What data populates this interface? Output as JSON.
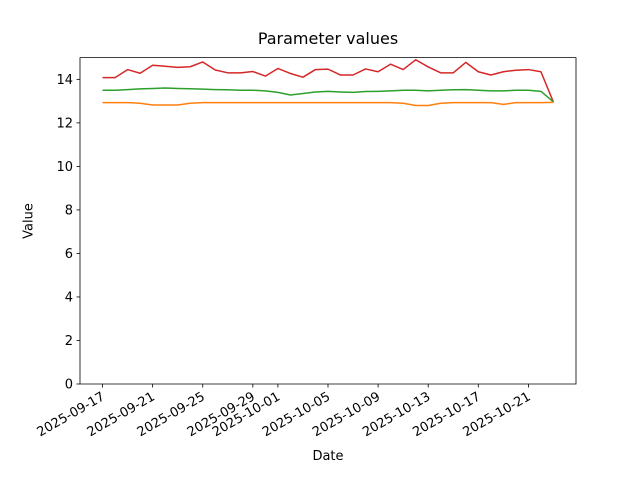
{
  "chart_data": {
    "type": "line",
    "title": "Parameter values",
    "xlabel": "Date",
    "ylabel": "Value",
    "ylim": [
      0,
      15
    ],
    "yticks": [
      0,
      2,
      4,
      6,
      8,
      10,
      12,
      14
    ],
    "grid": false,
    "legend_visible": false,
    "axis_color": "#000000",
    "background_color": "#ffffff",
    "x_dates": [
      "2025-09-17",
      "2025-09-18",
      "2025-09-19",
      "2025-09-20",
      "2025-09-21",
      "2025-09-22",
      "2025-09-23",
      "2025-09-24",
      "2025-09-25",
      "2025-09-26",
      "2025-09-27",
      "2025-09-28",
      "2025-09-29",
      "2025-09-30",
      "2025-10-01",
      "2025-10-02",
      "2025-10-03",
      "2025-10-04",
      "2025-10-05",
      "2025-10-06",
      "2025-10-07",
      "2025-10-08",
      "2025-10-09",
      "2025-10-10",
      "2025-10-11",
      "2025-10-12",
      "2025-10-13",
      "2025-10-14",
      "2025-10-15",
      "2025-10-16",
      "2025-10-17",
      "2025-10-18",
      "2025-10-19",
      "2025-10-20",
      "2025-10-21",
      "2025-10-22",
      "2025-10-23"
    ],
    "xticks": [
      {
        "label": "2025-09-17",
        "day": 0
      },
      {
        "label": "2025-09-21",
        "day": 4
      },
      {
        "label": "2025-09-25",
        "day": 8
      },
      {
        "label": "2025-09-29",
        "day": 12
      },
      {
        "label": "2025-10-01",
        "day": 14
      },
      {
        "label": "2025-10-05",
        "day": 18
      },
      {
        "label": "2025-10-09",
        "day": 22
      },
      {
        "label": "2025-10-13",
        "day": 26
      },
      {
        "label": "2025-10-17",
        "day": 30
      },
      {
        "label": "2025-10-21",
        "day": 34
      }
    ],
    "series": [
      {
        "name": "red-series",
        "color": "#d62728",
        "values": [
          14.08,
          14.08,
          14.45,
          14.28,
          14.65,
          14.6,
          14.55,
          14.58,
          14.8,
          14.43,
          14.3,
          14.3,
          14.36,
          14.15,
          14.5,
          14.27,
          14.1,
          14.45,
          14.47,
          14.2,
          14.2,
          14.48,
          14.35,
          14.7,
          14.45,
          14.9,
          14.57,
          14.3,
          14.3,
          14.78,
          14.35,
          14.2,
          14.35,
          14.42,
          14.45,
          14.35,
          12.95
        ]
      },
      {
        "name": "green-series",
        "color": "#2ca02c",
        "values": [
          13.5,
          13.5,
          13.53,
          13.56,
          13.58,
          13.6,
          13.58,
          13.57,
          13.55,
          13.53,
          13.52,
          13.5,
          13.5,
          13.47,
          13.4,
          13.28,
          13.35,
          13.42,
          13.45,
          13.42,
          13.4,
          13.44,
          13.45,
          13.47,
          13.5,
          13.5,
          13.47,
          13.5,
          13.52,
          13.53,
          13.5,
          13.47,
          13.47,
          13.5,
          13.5,
          13.45,
          12.96
        ]
      },
      {
        "name": "orange-series",
        "color": "#ff7f0e",
        "values": [
          12.93,
          12.93,
          12.93,
          12.9,
          12.82,
          12.82,
          12.82,
          12.9,
          12.93,
          12.93,
          12.93,
          12.93,
          12.93,
          12.93,
          12.93,
          12.93,
          12.93,
          12.93,
          12.93,
          12.93,
          12.93,
          12.93,
          12.93,
          12.93,
          12.9,
          12.8,
          12.8,
          12.9,
          12.93,
          12.93,
          12.93,
          12.93,
          12.85,
          12.93,
          12.93,
          12.93,
          12.94
        ]
      }
    ]
  }
}
